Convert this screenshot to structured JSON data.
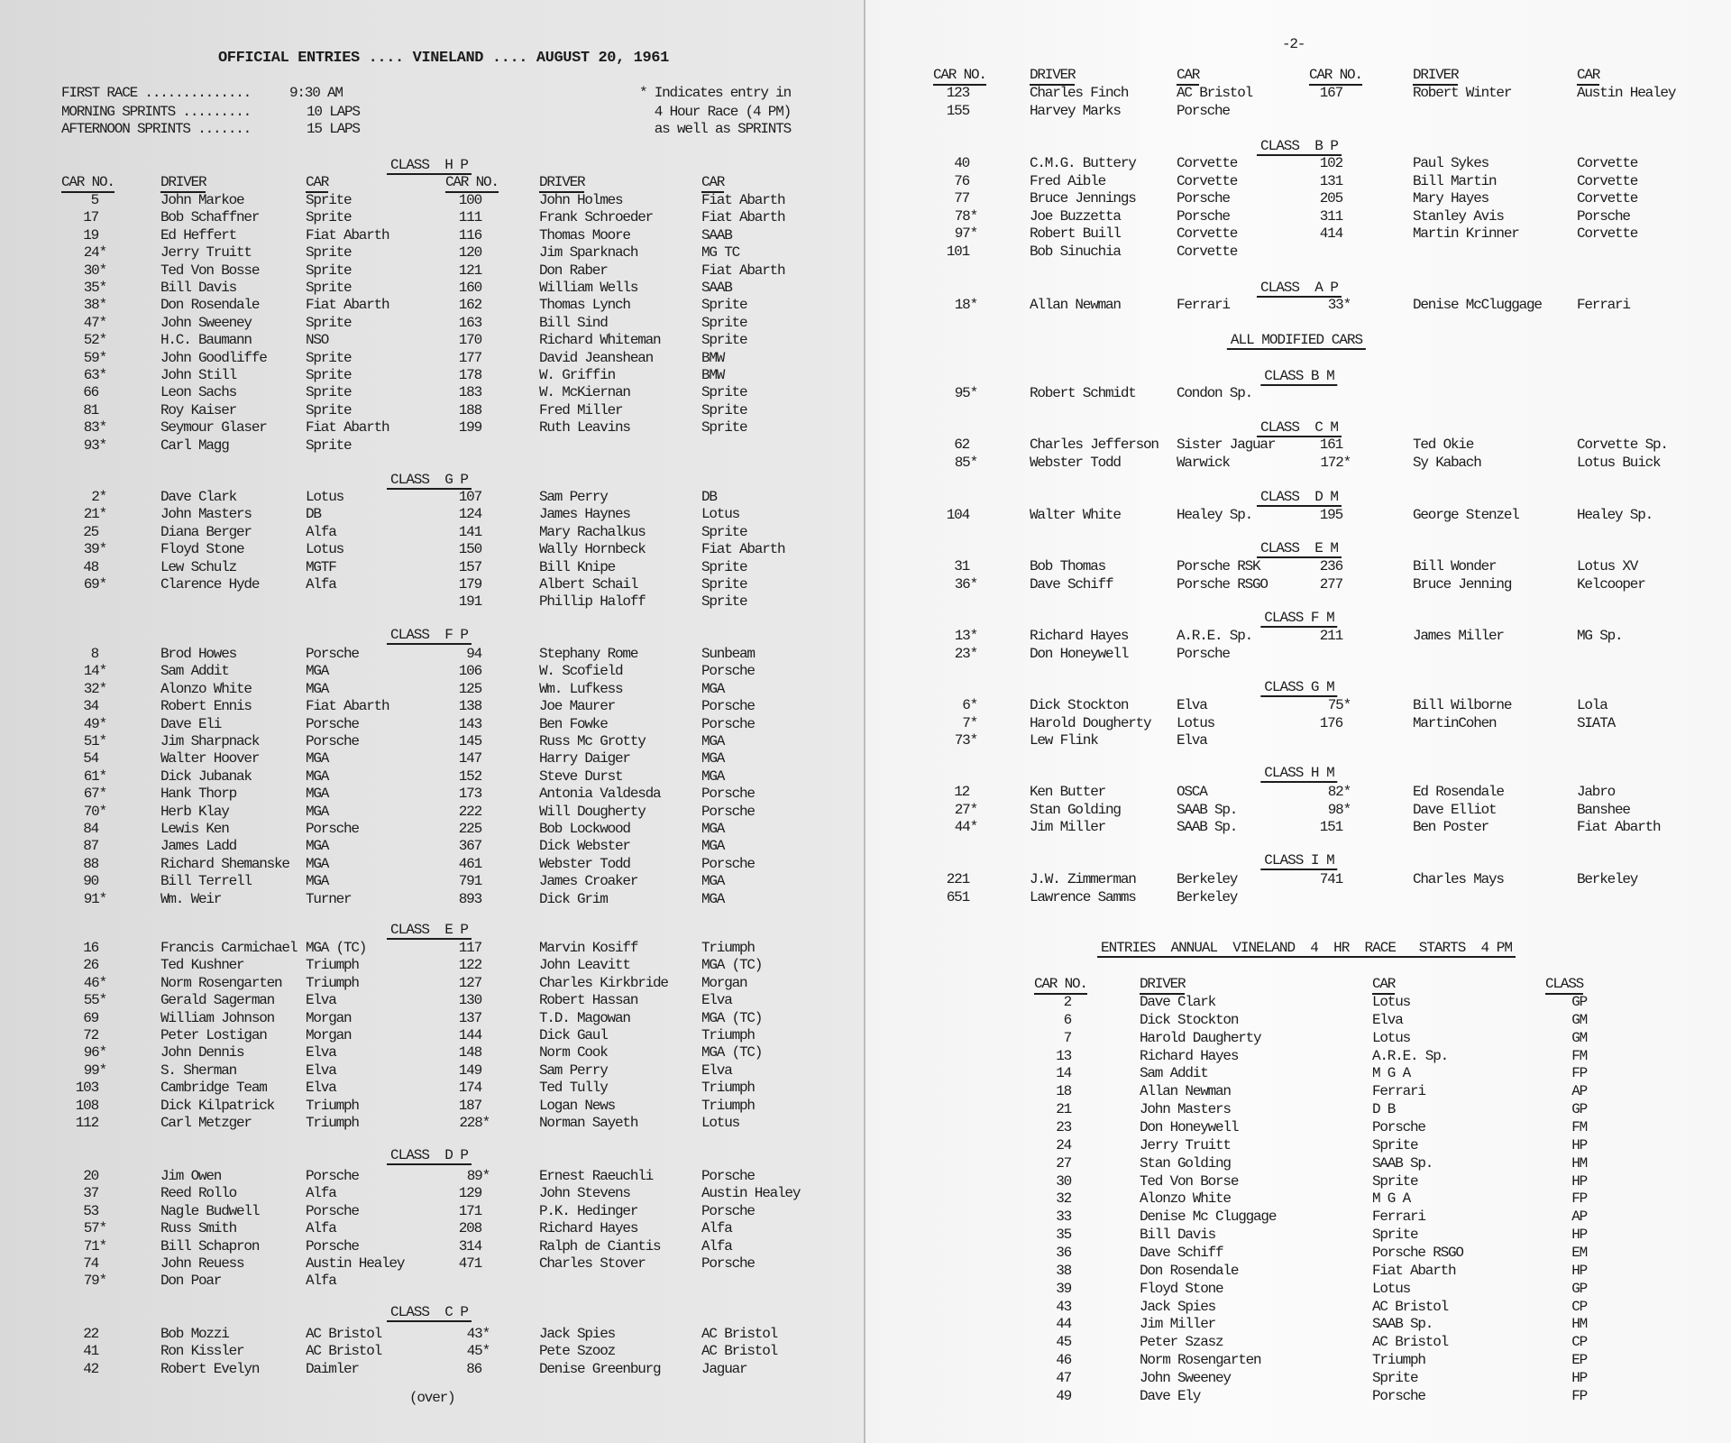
{
  "left_page": {
    "title": "OFFICIAL ENTRIES .... VINELAND .... AUGUST 20, 1961",
    "schedule": [
      {
        "label": "FIRST RACE ..............",
        "value": "9:30 AM"
      },
      {
        "label": "MORNING SPRINTS .........",
        "value": "10 LAPS"
      },
      {
        "label": "AFTERNOON SPRINTS .......",
        "value": "15 LAPS"
      }
    ],
    "note": [
      "* Indicates entry in",
      "4 Hour Race (4 PM)",
      "as well as SPRINTS"
    ],
    "columns": [
      "CAR NO.",
      "DRIVER",
      "CAR",
      "CAR NO.",
      "DRIVER",
      "CAR"
    ],
    "sections": [
      {
        "heading": "CLASS  H P",
        "rows": [
          [
            "5",
            "John Markoe",
            "Sprite",
            "100",
            "John Holmes",
            "Fiat Abarth"
          ],
          [
            "17",
            "Bob Schaffner",
            "Sprite",
            "111",
            "Frank Schroeder",
            "Fiat Abarth"
          ],
          [
            "19",
            "Ed Heffert",
            "Fiat Abarth",
            "116",
            "Thomas Moore",
            "SAAB"
          ],
          [
            "24*",
            "Jerry Truitt",
            "Sprite",
            "120",
            "Jim Sparknach",
            "MG TC"
          ],
          [
            "30*",
            "Ted Von Bosse",
            "Sprite",
            "121",
            "Don Raber",
            "Fiat Abarth"
          ],
          [
            "35*",
            "Bill Davis",
            "Sprite",
            "160",
            "William Wells",
            "SAAB"
          ],
          [
            "38*",
            "Don Rosendale",
            "Fiat Abarth",
            "162",
            "Thomas Lynch",
            "Sprite"
          ],
          [
            "47*",
            "John Sweeney",
            "Sprite",
            "163",
            "Bill Sind",
            "Sprite"
          ],
          [
            "52*",
            "H.C. Baumann",
            "NSO",
            "170",
            "Richard Whiteman",
            "Sprite"
          ],
          [
            "59*",
            "John Goodliffe",
            "Sprite",
            "177",
            "David Jeanshean",
            "BMW"
          ],
          [
            "63*",
            "John Still",
            "Sprite",
            "178",
            "W. Griffin",
            "BMW"
          ],
          [
            "66",
            "Leon Sachs",
            "Sprite",
            "183",
            "W. McKiernan",
            "Sprite"
          ],
          [
            "81",
            "Roy Kaiser",
            "Sprite",
            "188",
            "Fred Miller",
            "Sprite"
          ],
          [
            "83*",
            "Seymour Glaser",
            "Fiat Abarth",
            "199",
            "Ruth Leavins",
            "Sprite"
          ],
          [
            "93*",
            "Carl Magg",
            "Sprite",
            "",
            "",
            ""
          ]
        ]
      },
      {
        "heading": "CLASS  G P",
        "rows": [
          [
            "2*",
            "Dave Clark",
            "Lotus",
            "107",
            "Sam Perry",
            "DB"
          ],
          [
            "21*",
            "John Masters",
            "DB",
            "124",
            "James Haynes",
            "Lotus"
          ],
          [
            "25",
            "Diana Berger",
            "Alfa",
            "141",
            "Mary Rachalkus",
            "Sprite"
          ],
          [
            "39*",
            "Floyd Stone",
            "Lotus",
            "150",
            "Wally Hornbeck",
            "Fiat Abarth"
          ],
          [
            "48",
            "Lew Schulz",
            "MGTF",
            "157",
            "Bill Knipe",
            "Sprite"
          ],
          [
            "69*",
            "Clarence Hyde",
            "Alfa",
            "179",
            "Albert Schail",
            "Sprite"
          ],
          [
            "",
            "",
            "",
            "191",
            "Phillip Haloff",
            "Sprite"
          ]
        ]
      },
      {
        "heading": "CLASS  F P",
        "rows": [
          [
            "8",
            "Brod Howes",
            "Porsche",
            "94",
            "Stephany Rome",
            "Sunbeam"
          ],
          [
            "14*",
            "Sam Addit",
            "MGA",
            "106",
            "W. Scofield",
            "Porsche"
          ],
          [
            "32*",
            "Alonzo White",
            "MGA",
            "125",
            "Wm. Lufkess",
            "MGA"
          ],
          [
            "34",
            "Robert Ennis",
            "Fiat Abarth",
            "138",
            "Joe Maurer",
            "Porsche"
          ],
          [
            "49*",
            "Dave Eli",
            "Porsche",
            "143",
            "Ben Fowke",
            "Porsche"
          ],
          [
            "51*",
            "Jim Sharpnack",
            "Porsche",
            "145",
            "Russ Mc Grotty",
            "MGA"
          ],
          [
            "54",
            "Walter Hoover",
            "MGA",
            "147",
            "Harry Daiger",
            "MGA"
          ],
          [
            "61*",
            "Dick Jubanak",
            "MGA",
            "152",
            "Steve Durst",
            "MGA"
          ],
          [
            "67*",
            "Hank Thorp",
            "MGA",
            "173",
            "Antonia Valdesda",
            "Porsche"
          ],
          [
            "70*",
            "Herb Klay",
            "MGA",
            "222",
            "Will Dougherty",
            "Porsche"
          ],
          [
            "84",
            "Lewis Ken",
            "Porsche",
            "225",
            "Bob Lockwood",
            "MGA"
          ],
          [
            "87",
            "James Ladd",
            "MGA",
            "367",
            "Dick Webster",
            "MGA"
          ],
          [
            "88",
            "Richard Shemanske",
            "MGA",
            "461",
            "Webster Todd",
            "Porsche"
          ],
          [
            "90",
            "Bill Terrell",
            "MGA",
            "791",
            "James Croaker",
            "MGA"
          ],
          [
            "91*",
            "Wm. Weir",
            "Turner",
            "893",
            "Dick Grim",
            "MGA"
          ]
        ]
      },
      {
        "heading": "CLASS  E P",
        "rows": [
          [
            "16",
            "Francis Carmichael",
            "MGA (TC)",
            "117",
            "Marvin Kosiff",
            "Triumph"
          ],
          [
            "26",
            "Ted Kushner",
            "Triumph",
            "122",
            "John Leavitt",
            "MGA (TC)"
          ],
          [
            "46*",
            "Norm Rosengarten",
            "Triumph",
            "127",
            "Charles Kirkbride",
            "Morgan"
          ],
          [
            "55*",
            "Gerald Sagerman",
            "Elva",
            "130",
            "Robert Hassan",
            "Elva"
          ],
          [
            "69",
            "William Johnson",
            "Morgan",
            "137",
            "T.D. Magowan",
            "MGA (TC)"
          ],
          [
            "72",
            "Peter Lostigan",
            "Morgan",
            "144",
            "Dick Gaul",
            "Triumph"
          ],
          [
            "96*",
            "John Dennis",
            "Elva",
            "148",
            "Norm Cook",
            "MGA (TC)"
          ],
          [
            "99*",
            "S. Sherman",
            "Elva",
            "149",
            "Sam Perry",
            "Elva"
          ],
          [
            "103",
            "Cambridge Team",
            "Elva",
            "174",
            "Ted Tully",
            "Triumph"
          ],
          [
            "108",
            "Dick Kilpatrick",
            "Triumph",
            "187",
            "Logan News",
            "Triumph"
          ],
          [
            "112",
            "Carl Metzger",
            "Triumph",
            "228*",
            "Norman Sayeth",
            "Lotus"
          ]
        ]
      },
      {
        "heading": "CLASS  D P",
        "rows": [
          [
            "20",
            "Jim Owen",
            "Porsche",
            "89*",
            "Ernest Raeuchli",
            "Porsche"
          ],
          [
            "37",
            "Reed Rollo",
            "Alfa",
            "129",
            "John Stevens",
            "Austin Healey"
          ],
          [
            "53",
            "Nagle Budwell",
            "Porsche",
            "171",
            "P.K. Hedinger",
            "Porsche"
          ],
          [
            "57*",
            "Russ Smith",
            "Alfa",
            "208",
            "Richard Hayes",
            "Alfa"
          ],
          [
            "71*",
            "Bill Schapron",
            "Porsche",
            "314",
            "Ralph de Ciantis",
            "Alfa"
          ],
          [
            "74",
            "John Reuess",
            "Austin Healey",
            "471",
            "Charles Stover",
            "Porsche"
          ],
          [
            "79*",
            "Don Poar",
            "Alfa",
            "",
            "",
            ""
          ]
        ]
      },
      {
        "heading": "CLASS  C P",
        "rows": [
          [
            "22",
            "Bob Mozzi",
            "AC Bristol",
            "43*",
            "Jack Spies",
            "AC Bristol"
          ],
          [
            "41",
            "Ron Kissler",
            "AC Bristol",
            "45*",
            "Pete Szooz",
            "AC Bristol"
          ],
          [
            "42",
            "Robert Evelyn",
            "Daimler",
            "86",
            "Denise Greenburg",
            "Jaguar"
          ]
        ]
      }
    ],
    "footer": "(over)"
  },
  "right_page": {
    "page_number": "-2-",
    "columns": [
      "CAR NO.",
      "DRIVER",
      "CAR",
      "CAR NO.",
      "DRIVER",
      "CAR"
    ],
    "modified_heading": "ALL MODIFIED CARS",
    "sections": [
      {
        "heading": "",
        "rows": [
          [
            "123",
            "Charles Finch",
            "AC Bristol",
            "167",
            "Robert Winter",
            "Austin Healey"
          ],
          [
            "155",
            "Harvey Marks",
            "Porsche",
            "",
            "",
            ""
          ]
        ]
      },
      {
        "heading": "CLASS  B P",
        "rows": [
          [
            "40",
            "C.M.G. Buttery",
            "Corvette",
            "102",
            "Paul Sykes",
            "Corvette"
          ],
          [
            "76",
            "Fred Aible",
            "Corvette",
            "131",
            "Bill Martin",
            "Corvette"
          ],
          [
            "77",
            "Bruce Jennings",
            "Porsche",
            "205",
            "Mary Hayes",
            "Corvette"
          ],
          [
            "78*",
            "Joe Buzzetta",
            "Porsche",
            "311",
            "Stanley Avis",
            "Porsche"
          ],
          [
            "97*",
            "Robert Buill",
            "Corvette",
            "414",
            "Martin Krinner",
            "Corvette"
          ],
          [
            "101",
            "Bob Sinuchia",
            "Corvette",
            "",
            "",
            ""
          ]
        ]
      },
      {
        "heading": "CLASS  A P",
        "rows": [
          [
            "18*",
            "Allan Newman",
            "Ferrari",
            "33*",
            "Denise McCluggage",
            "Ferrari"
          ]
        ]
      },
      {
        "heading": "CLASS B M",
        "rows": [
          [
            "95*",
            "Robert Schmidt",
            "Condon Sp.",
            "",
            "",
            ""
          ]
        ]
      },
      {
        "heading": "CLASS  C M",
        "rows": [
          [
            "62",
            "Charles Jefferson",
            "Sister Jaguar",
            "161",
            "Ted Okie",
            "Corvette Sp."
          ],
          [
            "85*",
            "Webster Todd",
            "Warwick",
            "172*",
            "Sy Kabach",
            "Lotus Buick"
          ]
        ]
      },
      {
        "heading": "CLASS  D M",
        "rows": [
          [
            "104",
            "Walter White",
            "Healey Sp.",
            "195",
            "George Stenzel",
            "Healey Sp."
          ]
        ]
      },
      {
        "heading": "CLASS  E M",
        "rows": [
          [
            "31",
            "Bob Thomas",
            "Porsche RSK",
            "236",
            "Bill Wonder",
            "Lotus XV"
          ],
          [
            "36*",
            "Dave Schiff",
            "Porsche RSGO",
            "277",
            "Bruce Jenning",
            "Kelcooper"
          ]
        ]
      },
      {
        "heading": "CLASS F M",
        "rows": [
          [
            "13*",
            "Richard Hayes",
            "A.R.E. Sp.",
            "211",
            "James Miller",
            "MG Sp."
          ],
          [
            "23*",
            "Don Honeywell",
            "Porsche",
            "",
            "",
            ""
          ]
        ]
      },
      {
        "heading": "CLASS G M",
        "rows": [
          [
            "6*",
            "Dick Stockton",
            "Elva",
            "75*",
            "Bill Wilborne",
            "Lola"
          ],
          [
            "7*",
            "Harold Dougherty",
            "Lotus",
            "176",
            "MartinCohen",
            "SIATA"
          ],
          [
            "73*",
            "Lew Flink",
            "Elva",
            "",
            "",
            ""
          ]
        ]
      },
      {
        "heading": "CLASS H M",
        "rows": [
          [
            "12",
            "Ken Butter",
            "OSCA",
            "82*",
            "Ed Rosendale",
            "Jabro"
          ],
          [
            "27*",
            "Stan Golding",
            "SAAB Sp.",
            "98*",
            "Dave Elliot",
            "Banshee"
          ],
          [
            "44*",
            "Jim Miller",
            "SAAB Sp.",
            "151",
            "Ben Poster",
            "Fiat Abarth"
          ]
        ]
      },
      {
        "heading": "CLASS I M",
        "rows": [
          [
            "221",
            "J.W. Zimmerman",
            "Berkeley",
            "741",
            "Charles Mays",
            "Berkeley"
          ],
          [
            "651",
            "Lawrence Samms",
            "Berkeley",
            "",
            "",
            ""
          ]
        ]
      }
    ],
    "four_hour": {
      "heading": "ENTRIES  ANNUAL  VINELAND  4  HR  RACE   STARTS  4 PM",
      "columns": [
        "CAR NO.",
        "DRIVER",
        "CAR",
        "CLASS"
      ],
      "rows": [
        [
          "2",
          "Dave Clark",
          "Lotus",
          "GP"
        ],
        [
          "6",
          "Dick Stockton",
          "Elva",
          "GM"
        ],
        [
          "7",
          "Harold Daugherty",
          "Lotus",
          "GM"
        ],
        [
          "13",
          "Richard Hayes",
          "A.R.E. Sp.",
          "FM"
        ],
        [
          "14",
          "Sam Addit",
          "M G A",
          "FP"
        ],
        [
          "18",
          "Allan Newman",
          "Ferrari",
          "AP"
        ],
        [
          "21",
          "John Masters",
          "D B",
          "GP"
        ],
        [
          "23",
          "Don Honeywell",
          "Porsche",
          "FM"
        ],
        [
          "24",
          "Jerry Truitt",
          "Sprite",
          "HP"
        ],
        [
          "27",
          "Stan Golding",
          "SAAB Sp.",
          "HM"
        ],
        [
          "30",
          "Ted Von Borse",
          "Sprite",
          "HP"
        ],
        [
          "32",
          "Alonzo White",
          "M G A",
          "FP"
        ],
        [
          "33",
          "Denise Mc Cluggage",
          "Ferrari",
          "AP"
        ],
        [
          "35",
          "Bill Davis",
          "Sprite",
          "HP"
        ],
        [
          "36",
          "Dave Schiff",
          "Porsche RSGO",
          "EM"
        ],
        [
          "38",
          "Don Rosendale",
          "Fiat Abarth",
          "HP"
        ],
        [
          "39",
          "Floyd Stone",
          "Lotus",
          "GP"
        ],
        [
          "43",
          "Jack Spies",
          "AC Bristol",
          "CP"
        ],
        [
          "44",
          "Jim Miller",
          "SAAB Sp.",
          "HM"
        ],
        [
          "45",
          "Peter Szasz",
          "AC Bristol",
          "CP"
        ],
        [
          "46",
          "Norm Rosengarten",
          "Triumph",
          "EP"
        ],
        [
          "47",
          "John Sweeney",
          "Sprite",
          "HP"
        ],
        [
          "49",
          "Dave Ely",
          "Porsche",
          "FP"
        ]
      ]
    }
  }
}
